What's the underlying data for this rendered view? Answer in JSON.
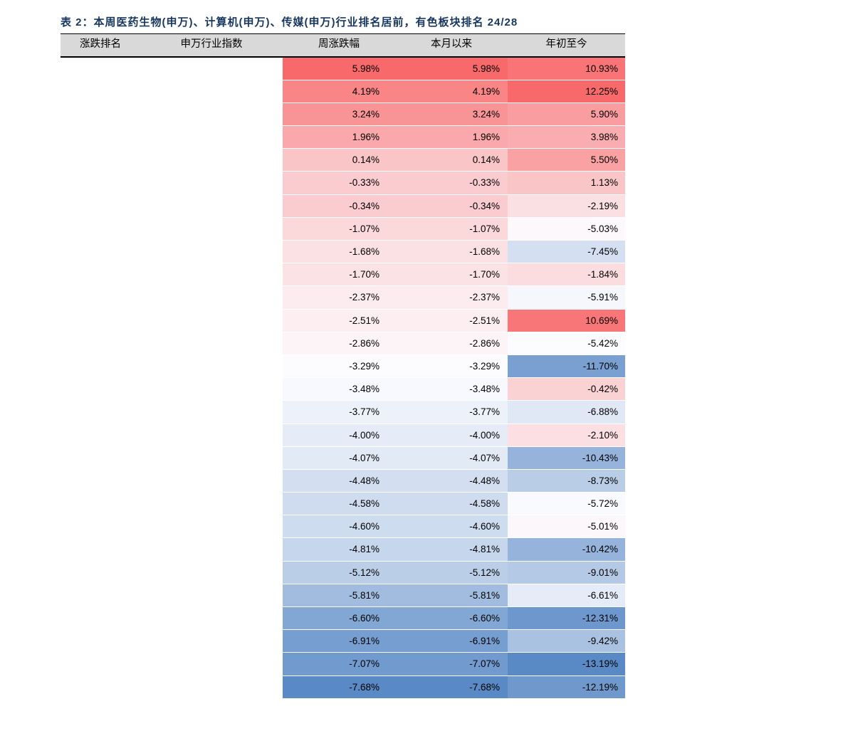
{
  "caption": "表 2：本周医药生物(申万)、计算机(申万)、传媒(申万)行业排名居前，有色板块排名 24/28",
  "colors": {
    "caption_text": "#17375E",
    "header_bg": "#D9D9D9",
    "header_border": "#000000",
    "heat_max": "#F8696B",
    "heat_mid": "#FCFCFF",
    "heat_min": "#5A8AC6",
    "grid_line": "#FFFFFF"
  },
  "chart_data": {
    "type": "heatmap_table",
    "caption": "表 2：本周医药生物(申万)、计算机(申万)、传媒(申万)行业排名居前，有色板块排名 24/28",
    "columns": [
      "涨跌排名",
      "申万行业指数",
      "周涨跌幅",
      "本月以来",
      "年初至今"
    ],
    "blank_columns": [
      "涨跌排名",
      "申万行业指数"
    ],
    "value_format": "percent_2dp",
    "color_scale": {
      "min": "#5A8AC6",
      "mid": "#FCFCFF",
      "max": "#F8696B",
      "midpoint": "median_per_column"
    },
    "series": [
      {
        "name": "周涨跌幅",
        "values": [
          5.98,
          4.19,
          3.24,
          1.96,
          0.14,
          -0.33,
          -0.34,
          -1.07,
          -1.68,
          -1.7,
          -2.37,
          -2.51,
          -2.86,
          -3.29,
          -3.48,
          -3.77,
          -4.0,
          -4.07,
          -4.48,
          -4.58,
          -4.6,
          -4.81,
          -5.12,
          -5.81,
          -6.6,
          -6.91,
          -7.07,
          -7.68
        ]
      },
      {
        "name": "本月以来",
        "values": [
          5.98,
          4.19,
          3.24,
          1.96,
          0.14,
          -0.33,
          -0.34,
          -1.07,
          -1.68,
          -1.7,
          -2.37,
          -2.51,
          -2.86,
          -3.29,
          -3.48,
          -3.77,
          -4.0,
          -4.07,
          -4.48,
          -4.58,
          -4.6,
          -4.81,
          -5.12,
          -5.81,
          -6.6,
          -6.91,
          -7.07,
          -7.68
        ]
      },
      {
        "name": "年初至今",
        "values": [
          10.93,
          12.25,
          5.9,
          3.98,
          5.5,
          1.13,
          -2.19,
          -5.03,
          -7.45,
          -1.84,
          -5.91,
          10.69,
          -5.42,
          -11.7,
          -0.42,
          -6.88,
          -2.1,
          -10.43,
          -8.73,
          -5.72,
          -5.01,
          -10.42,
          -9.01,
          -6.61,
          -12.31,
          -9.42,
          -13.19,
          -12.19
        ]
      }
    ]
  }
}
